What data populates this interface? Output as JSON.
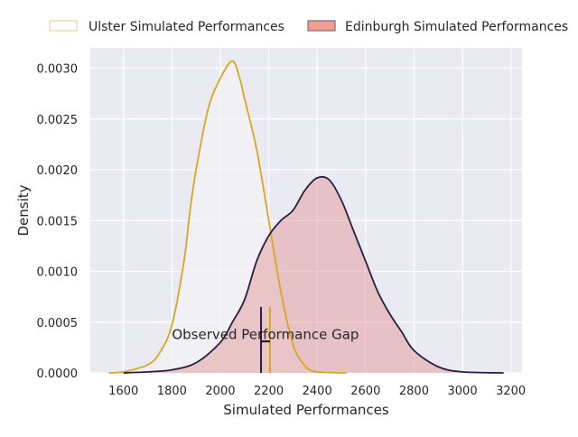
{
  "chart_data": {
    "type": "area",
    "title": "",
    "xlabel": "Simulated Performances",
    "ylabel": "Density",
    "xlim": [
      1463,
      3246
    ],
    "ylim": [
      0,
      0.0032
    ],
    "xticks": [
      1600,
      1800,
      2000,
      2200,
      2400,
      2600,
      2800,
      3000,
      3200
    ],
    "yticks": [
      0,
      0.0005,
      0.001,
      0.0015,
      0.002,
      0.0025,
      0.003
    ],
    "ytick_labels": [
      "0.0000",
      "0.0005",
      "0.0010",
      "0.0015",
      "0.0020",
      "0.0025",
      "0.0030"
    ],
    "grid": true,
    "legend_position": "top-outside",
    "series": [
      {
        "name": "Ulster Simulated Performances",
        "line_color": "#DAA520",
        "fill_color": "#F4F2F7",
        "x": [
          1540,
          1600,
          1700,
          1750,
          1800,
          1850,
          1875,
          1900,
          1950,
          2000,
          2050,
          2080,
          2100,
          2150,
          2200,
          2250,
          2300,
          2350,
          2400,
          2520
        ],
        "y": [
          0,
          1e-05,
          8e-05,
          0.0002,
          0.00047,
          0.0011,
          0.0016,
          0.002,
          0.0026,
          0.0029,
          0.00307,
          0.0029,
          0.0027,
          0.0022,
          0.0015,
          0.0008,
          0.00028,
          7e-05,
          1e-05,
          0
        ]
      },
      {
        "name": "Edinburgh Simulated Performances",
        "line_color": "#2A1E42",
        "fill_color": "#E29A9A",
        "x": [
          1600,
          1700,
          1800,
          1900,
          2000,
          2050,
          2100,
          2150,
          2200,
          2250,
          2300,
          2350,
          2400,
          2450,
          2500,
          2550,
          2600,
          2650,
          2700,
          2750,
          2800,
          2900,
          3000,
          3170
        ],
        "y": [
          0,
          1e-05,
          3e-05,
          0.0001,
          0.0003,
          0.0005,
          0.00072,
          0.0011,
          0.00135,
          0.0015,
          0.0016,
          0.0018,
          0.00192,
          0.0019,
          0.0017,
          0.0014,
          0.0011,
          0.0008,
          0.00058,
          0.0004,
          0.00022,
          6e-05,
          1e-05,
          0
        ]
      }
    ],
    "annotations": {
      "text": "Observed Performance Gap",
      "text_x": 1800,
      "text_y": 0.00038,
      "edinburgh_observed": 2168,
      "ulster_observed": 2205,
      "line_top": 0.00065,
      "gap_y": 0.00031
    }
  }
}
